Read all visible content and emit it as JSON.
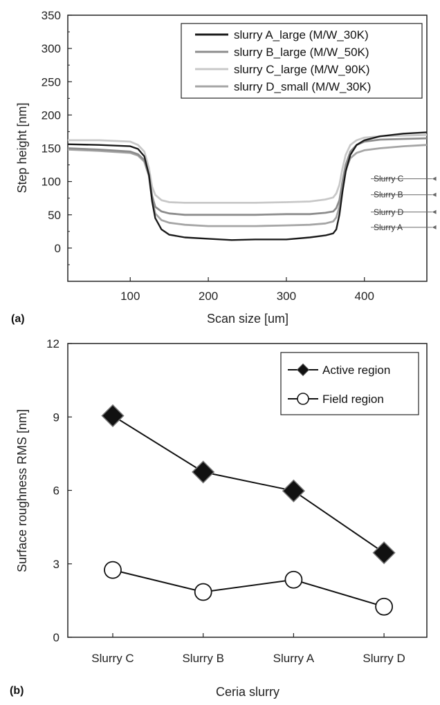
{
  "chart_data": [
    {
      "panel_label": "(a)",
      "type": "line",
      "xlabel": "Scan size [um]",
      "ylabel": "Step height [nm]",
      "xlim": [
        20,
        480
      ],
      "ylim": [
        -50,
        350
      ],
      "xticks": [
        100,
        200,
        300,
        400
      ],
      "yticks": [
        0,
        50,
        100,
        150,
        200,
        250,
        300,
        350
      ],
      "legend_position": "top-right",
      "series": [
        {
          "name": "slurry A_large (M/W_30K)",
          "color": "#1a1a1a",
          "x": [
            20,
            60,
            100,
            110,
            118,
            124,
            128,
            132,
            140,
            150,
            170,
            200,
            230,
            260,
            300,
            330,
            350,
            360,
            364,
            368,
            372,
            376,
            382,
            390,
            400,
            420,
            450,
            480
          ],
          "y": [
            156,
            155,
            153,
            149,
            138,
            110,
            70,
            45,
            28,
            20,
            16,
            14,
            12,
            13,
            13,
            16,
            19,
            22,
            28,
            50,
            85,
            115,
            140,
            155,
            162,
            168,
            172,
            174
          ]
        },
        {
          "name": "slurry B_large (M/W_50K)",
          "color": "#8c8c8c",
          "x": [
            20,
            60,
            100,
            110,
            118,
            124,
            128,
            132,
            140,
            150,
            170,
            200,
            230,
            260,
            300,
            330,
            350,
            360,
            364,
            368,
            372,
            376,
            382,
            390,
            400,
            420,
            450,
            480
          ],
          "y": [
            150,
            148,
            145,
            141,
            132,
            110,
            78,
            62,
            55,
            52,
            50,
            50,
            50,
            50,
            51,
            51,
            53,
            55,
            60,
            72,
            100,
            125,
            145,
            155,
            160,
            163,
            164,
            165
          ]
        },
        {
          "name": "slurry C_large (M/W_90K)",
          "color": "#c8c8c8",
          "x": [
            20,
            60,
            100,
            110,
            118,
            124,
            128,
            132,
            140,
            150,
            170,
            200,
            230,
            260,
            300,
            330,
            350,
            360,
            364,
            368,
            372,
            376,
            382,
            390,
            400,
            420,
            450,
            480
          ],
          "y": [
            162,
            162,
            160,
            155,
            145,
            120,
            92,
            80,
            72,
            69,
            68,
            68,
            68,
            68,
            69,
            70,
            73,
            76,
            82,
            95,
            120,
            140,
            155,
            162,
            166,
            168,
            169,
            170
          ]
        },
        {
          "name": "slurry D_small (M/W_30K)",
          "color": "#a5a5a5",
          "x": [
            20,
            60,
            100,
            110,
            118,
            124,
            128,
            132,
            140,
            150,
            170,
            200,
            230,
            260,
            300,
            330,
            350,
            360,
            364,
            368,
            372,
            376,
            382,
            390,
            400,
            420,
            450,
            480
          ],
          "y": [
            148,
            146,
            143,
            139,
            130,
            108,
            72,
            52,
            42,
            38,
            35,
            33,
            33,
            33,
            34,
            35,
            37,
            40,
            46,
            62,
            92,
            118,
            135,
            143,
            147,
            150,
            153,
            155
          ]
        }
      ],
      "annotations": [
        {
          "text": "Slurry C",
          "x": 430,
          "y": 100
        },
        {
          "text": "Slurry B",
          "x": 430,
          "y": 76
        },
        {
          "text": "Slurry D",
          "x": 430,
          "y": 50
        },
        {
          "text": "Slurry A",
          "x": 430,
          "y": 27
        }
      ]
    },
    {
      "panel_label": "(b)",
      "type": "line",
      "xlabel": "Ceria slurry",
      "ylabel": "Surface roughness RMS [nm]",
      "categories": [
        "Slurry C",
        "Slurry B",
        "Slurry A",
        "Slurry D"
      ],
      "ylim": [
        0,
        12
      ],
      "yticks": [
        0,
        3,
        6,
        9,
        12
      ],
      "legend_position": "top-right",
      "series": [
        {
          "name": "Active region",
          "marker": "diamond",
          "values": [
            9.05,
            6.75,
            5.98,
            3.45
          ]
        },
        {
          "name": "Field region",
          "marker": "circle",
          "values": [
            2.75,
            1.85,
            2.35,
            1.25
          ]
        }
      ]
    }
  ]
}
